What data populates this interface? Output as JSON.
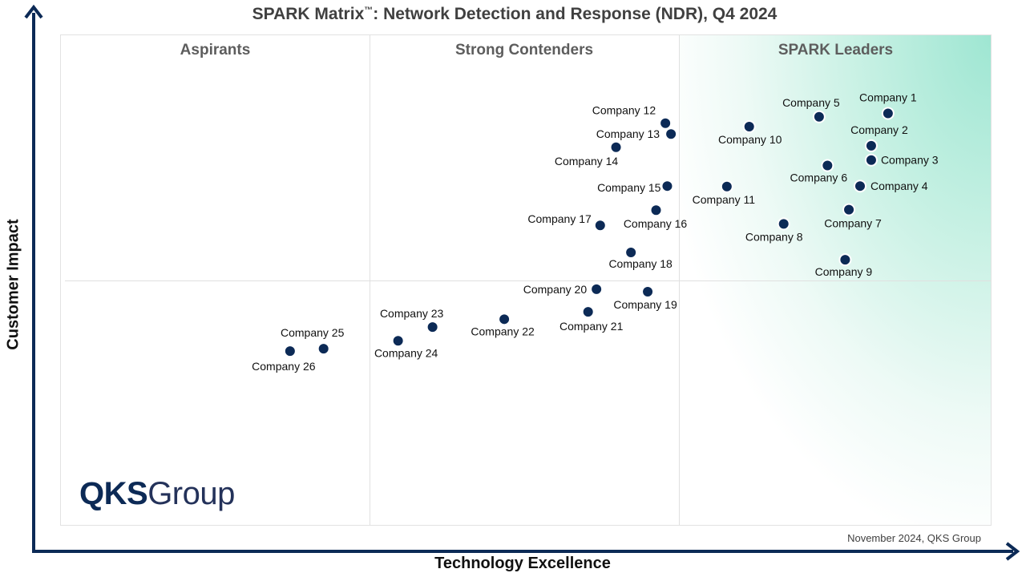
{
  "chart": {
    "title_main": "SPARK Matrix",
    "title_tm": "™",
    "title_rest": ": Network Detection and Response (NDR), Q4 2024",
    "xlabel": "Technology Excellence",
    "ylabel": "Customer Impact",
    "source": "November 2024, QKS Group",
    "logo_strong": "QKS",
    "logo_light": "Group",
    "quadrants": [
      "Aspirants",
      "Strong Contenders",
      "SPARK Leaders"
    ],
    "colors": {
      "marker": "#0c2a56",
      "axis": "#0c2a56",
      "leaders_gradient": "#9ee6d2"
    }
  },
  "chart_data": {
    "type": "scatter",
    "xlim": [
      0,
      100
    ],
    "ylim": [
      0,
      100
    ],
    "points": [
      {
        "label": "Company 1",
        "x": 88.8,
        "y": 84.1
      },
      {
        "label": "Company 2",
        "x": 87.0,
        "y": 77.5
      },
      {
        "label": "Company 3",
        "x": 87.0,
        "y": 74.6
      },
      {
        "label": "Company 4",
        "x": 85.8,
        "y": 69.3
      },
      {
        "label": "Company 5",
        "x": 81.4,
        "y": 83.4
      },
      {
        "label": "Company 6",
        "x": 82.3,
        "y": 73.5
      },
      {
        "label": "Company 7",
        "x": 84.6,
        "y": 64.5
      },
      {
        "label": "Company 8",
        "x": 77.6,
        "y": 61.6
      },
      {
        "label": "Company 9",
        "x": 84.2,
        "y": 54.3
      },
      {
        "label": "Company 10",
        "x": 73.9,
        "y": 81.4
      },
      {
        "label": "Company 11",
        "x": 71.5,
        "y": 69.2
      },
      {
        "label": "Company 12",
        "x": 64.9,
        "y": 82.1
      },
      {
        "label": "Company 13",
        "x": 65.5,
        "y": 79.9
      },
      {
        "label": "Company 14",
        "x": 59.6,
        "y": 77.2
      },
      {
        "label": "Company 15",
        "x": 65.1,
        "y": 69.3
      },
      {
        "label": "Company 16",
        "x": 63.9,
        "y": 64.4
      },
      {
        "label": "Company 17",
        "x": 57.9,
        "y": 61.3
      },
      {
        "label": "Company 18",
        "x": 61.2,
        "y": 55.8
      },
      {
        "label": "Company 19",
        "x": 63.0,
        "y": 47.8
      },
      {
        "label": "Company 20",
        "x": 57.5,
        "y": 48.3
      },
      {
        "label": "Company 21",
        "x": 56.6,
        "y": 43.7
      },
      {
        "label": "Company 22",
        "x": 47.6,
        "y": 42.2
      },
      {
        "label": "Company 23",
        "x": 39.9,
        "y": 40.6
      },
      {
        "label": "Company 24",
        "x": 36.2,
        "y": 37.8
      },
      {
        "label": "Company 25",
        "x": 28.2,
        "y": 36.2
      },
      {
        "label": "Company 26",
        "x": 24.6,
        "y": 35.7
      }
    ]
  }
}
